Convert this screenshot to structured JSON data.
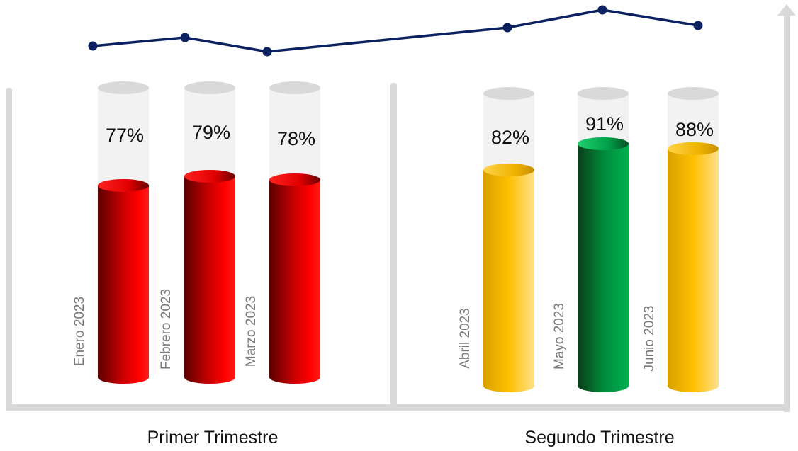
{
  "chart_data": {
    "type": "bar",
    "categories": [
      "Enero 2023",
      "Febrero 2023",
      "Marzo 2023",
      "Abril 2023",
      "Mayo 2023",
      "Junio 2023"
    ],
    "values": [
      77,
      79,
      78,
      82,
      91,
      88
    ],
    "value_labels": [
      "77%",
      "79%",
      "78%",
      "82%",
      "91%",
      "88%"
    ],
    "bar_colors": [
      "#ff0000",
      "#ff0000",
      "#ff0000",
      "#ffc000",
      "#00b050",
      "#ffc000"
    ],
    "groups": [
      {
        "label": "Primer Trimestre",
        "categories": [
          "Enero 2023",
          "Febrero 2023",
          "Marzo 2023"
        ]
      },
      {
        "label": "Segundo Trimestre",
        "categories": [
          "Abril 2023",
          "Mayo 2023",
          "Junio 2023"
        ]
      }
    ],
    "trend_line": {
      "values": [
        77,
        79,
        78,
        82,
        91,
        88
      ],
      "color": "#0b2160"
    },
    "ylim": [
      0,
      100
    ],
    "title": "",
    "xlabel": "",
    "ylabel": "",
    "grid": false,
    "legend": "none"
  }
}
